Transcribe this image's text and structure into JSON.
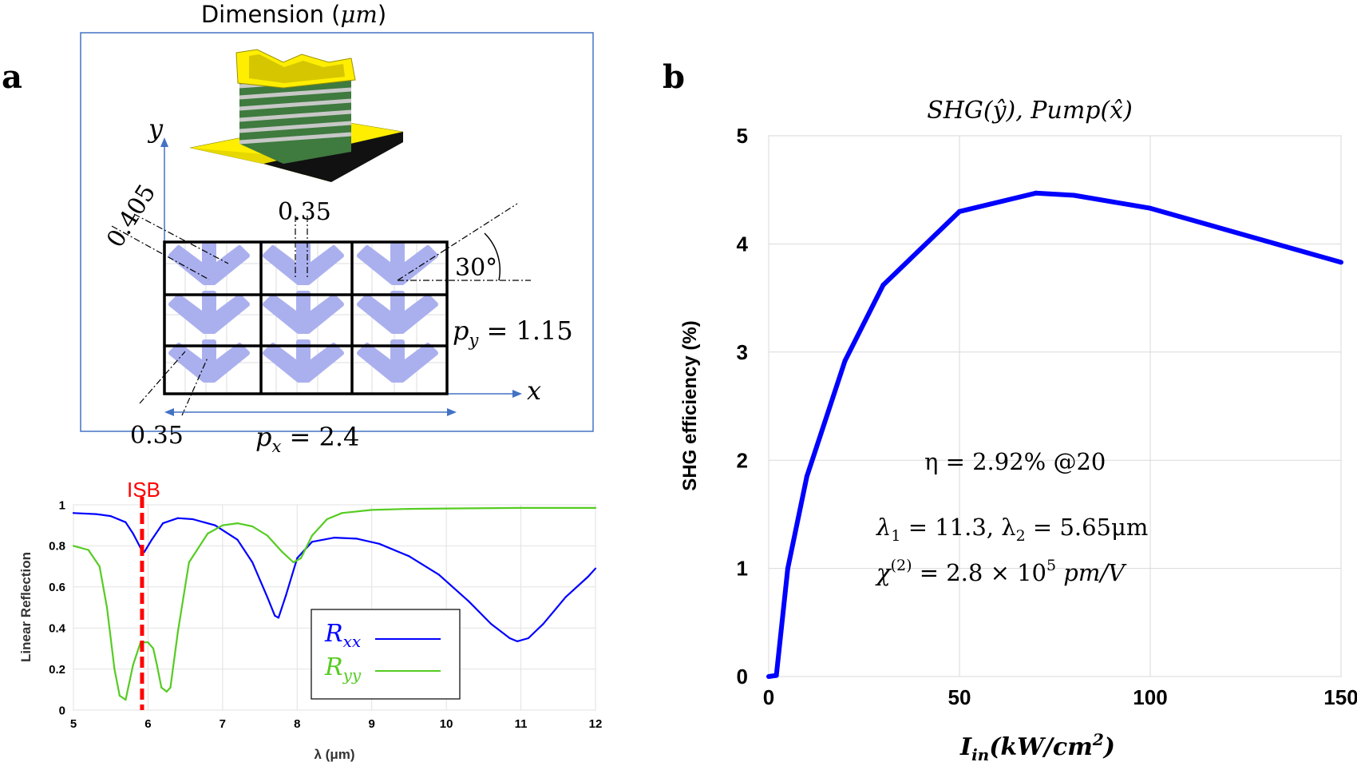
{
  "panel_a": {
    "label": "a",
    "dimension_title_prefix": "Dimension (",
    "dimension_title_unit": "μm",
    "dimension_title_suffix": ")",
    "axis_x": "x",
    "axis_y": "y",
    "dim_diag": "0.405",
    "dim_top": "0.35",
    "dim_bottom": "0.35",
    "angle": "30°",
    "py_label": "p",
    "py_sub": "y",
    "py_value": " = 1.15",
    "px_label": "p",
    "px_sub": "x",
    "px_value": " = 2.4",
    "colors": {
      "border": "#4472c4",
      "shape": "#aab0ee",
      "gold": "#ffee00",
      "stack": "#3f7a3f"
    }
  },
  "chart_data": [
    {
      "type": "line",
      "title": "",
      "xlabel": "λ (μm)",
      "ylabel": "Linear Reflection",
      "xlim": [
        5,
        12
      ],
      "ylim": [
        0,
        1
      ],
      "xticks": [
        "5",
        "6",
        "7",
        "8",
        "9",
        "10",
        "11",
        "12"
      ],
      "yticks": [
        "0",
        "0.2",
        "0.4",
        "0.6",
        "0.8",
        "1"
      ],
      "grid": true,
      "marker": {
        "label": "ISB",
        "x": 5.92,
        "color": "#ff0000"
      },
      "legend": {
        "position": "bottom-center"
      },
      "series": [
        {
          "name": "Rxx",
          "name_main": "R",
          "name_sub": "xx",
          "color": "#0000ff",
          "x": [
            5.0,
            5.3,
            5.5,
            5.7,
            5.8,
            5.9,
            5.95,
            6.05,
            6.2,
            6.4,
            6.6,
            6.9,
            7.2,
            7.4,
            7.6,
            7.7,
            7.75,
            7.85,
            8.0,
            8.2,
            8.5,
            8.8,
            9.1,
            9.5,
            9.9,
            10.3,
            10.6,
            10.85,
            10.95,
            11.1,
            11.3,
            11.6,
            11.9,
            12.0
          ],
          "values": [
            0.96,
            0.955,
            0.945,
            0.915,
            0.86,
            0.79,
            0.77,
            0.83,
            0.91,
            0.935,
            0.93,
            0.9,
            0.83,
            0.72,
            0.55,
            0.46,
            0.45,
            0.56,
            0.74,
            0.82,
            0.84,
            0.835,
            0.81,
            0.75,
            0.66,
            0.53,
            0.42,
            0.35,
            0.335,
            0.35,
            0.42,
            0.55,
            0.65,
            0.69
          ]
        },
        {
          "name": "Ryy",
          "name_main": "R",
          "name_sub": "yy",
          "color": "#55cc22",
          "x": [
            5.0,
            5.2,
            5.35,
            5.45,
            5.55,
            5.62,
            5.7,
            5.8,
            5.9,
            6.0,
            6.07,
            6.12,
            6.18,
            6.25,
            6.3,
            6.4,
            6.55,
            6.8,
            7.0,
            7.2,
            7.4,
            7.6,
            7.8,
            7.95,
            8.05,
            8.2,
            8.4,
            8.6,
            9.0,
            9.5,
            10.0,
            11.0,
            12.0
          ],
          "values": [
            0.8,
            0.78,
            0.7,
            0.5,
            0.2,
            0.07,
            0.05,
            0.22,
            0.33,
            0.33,
            0.3,
            0.22,
            0.11,
            0.09,
            0.11,
            0.38,
            0.72,
            0.86,
            0.9,
            0.91,
            0.895,
            0.85,
            0.77,
            0.72,
            0.74,
            0.85,
            0.93,
            0.96,
            0.975,
            0.98,
            0.982,
            0.985,
            0.985
          ]
        }
      ]
    },
    {
      "type": "line",
      "title_prefix": "SHG(",
      "title_hat1": "ŷ",
      "title_mid": "), Pump(",
      "title_hat2": "x̂",
      "title_suffix": ")",
      "xlabel_main": "I",
      "xlabel_sub": "in",
      "xlabel_unit": "(kW/cm",
      "xlabel_sup": "2",
      "xlabel_close": ")",
      "ylabel": "SHG efficiency (%)",
      "xlim": [
        0,
        150
      ],
      "ylim": [
        0,
        5
      ],
      "xticks": [
        "0",
        "50",
        "100",
        "150"
      ],
      "yticks": [
        "0",
        "1",
        "2",
        "3",
        "4",
        "5"
      ],
      "grid": true,
      "color": "#0000ff",
      "annotations": {
        "eta": "η = 2.92% @20",
        "lambda_1": "λ",
        "lambda_1_sub": "1",
        "lambda_mid": " = 11.3, λ",
        "lambda_2_sub": "2",
        "lambda_end": " = 5.65μm",
        "chi_main": "χ",
        "chi_sup": "(2)",
        "chi_mid": " = 2.8 × 10",
        "chi_exp": "5",
        "chi_unit": " pm/V"
      },
      "x": [
        0,
        2,
        5,
        10,
        20,
        30,
        50,
        70,
        80,
        100,
        150
      ],
      "values": [
        0,
        0.01,
        1.0,
        1.85,
        2.92,
        3.62,
        4.3,
        4.47,
        4.45,
        4.33,
        3.83
      ]
    }
  ],
  "panel_b": {
    "label": "b"
  }
}
